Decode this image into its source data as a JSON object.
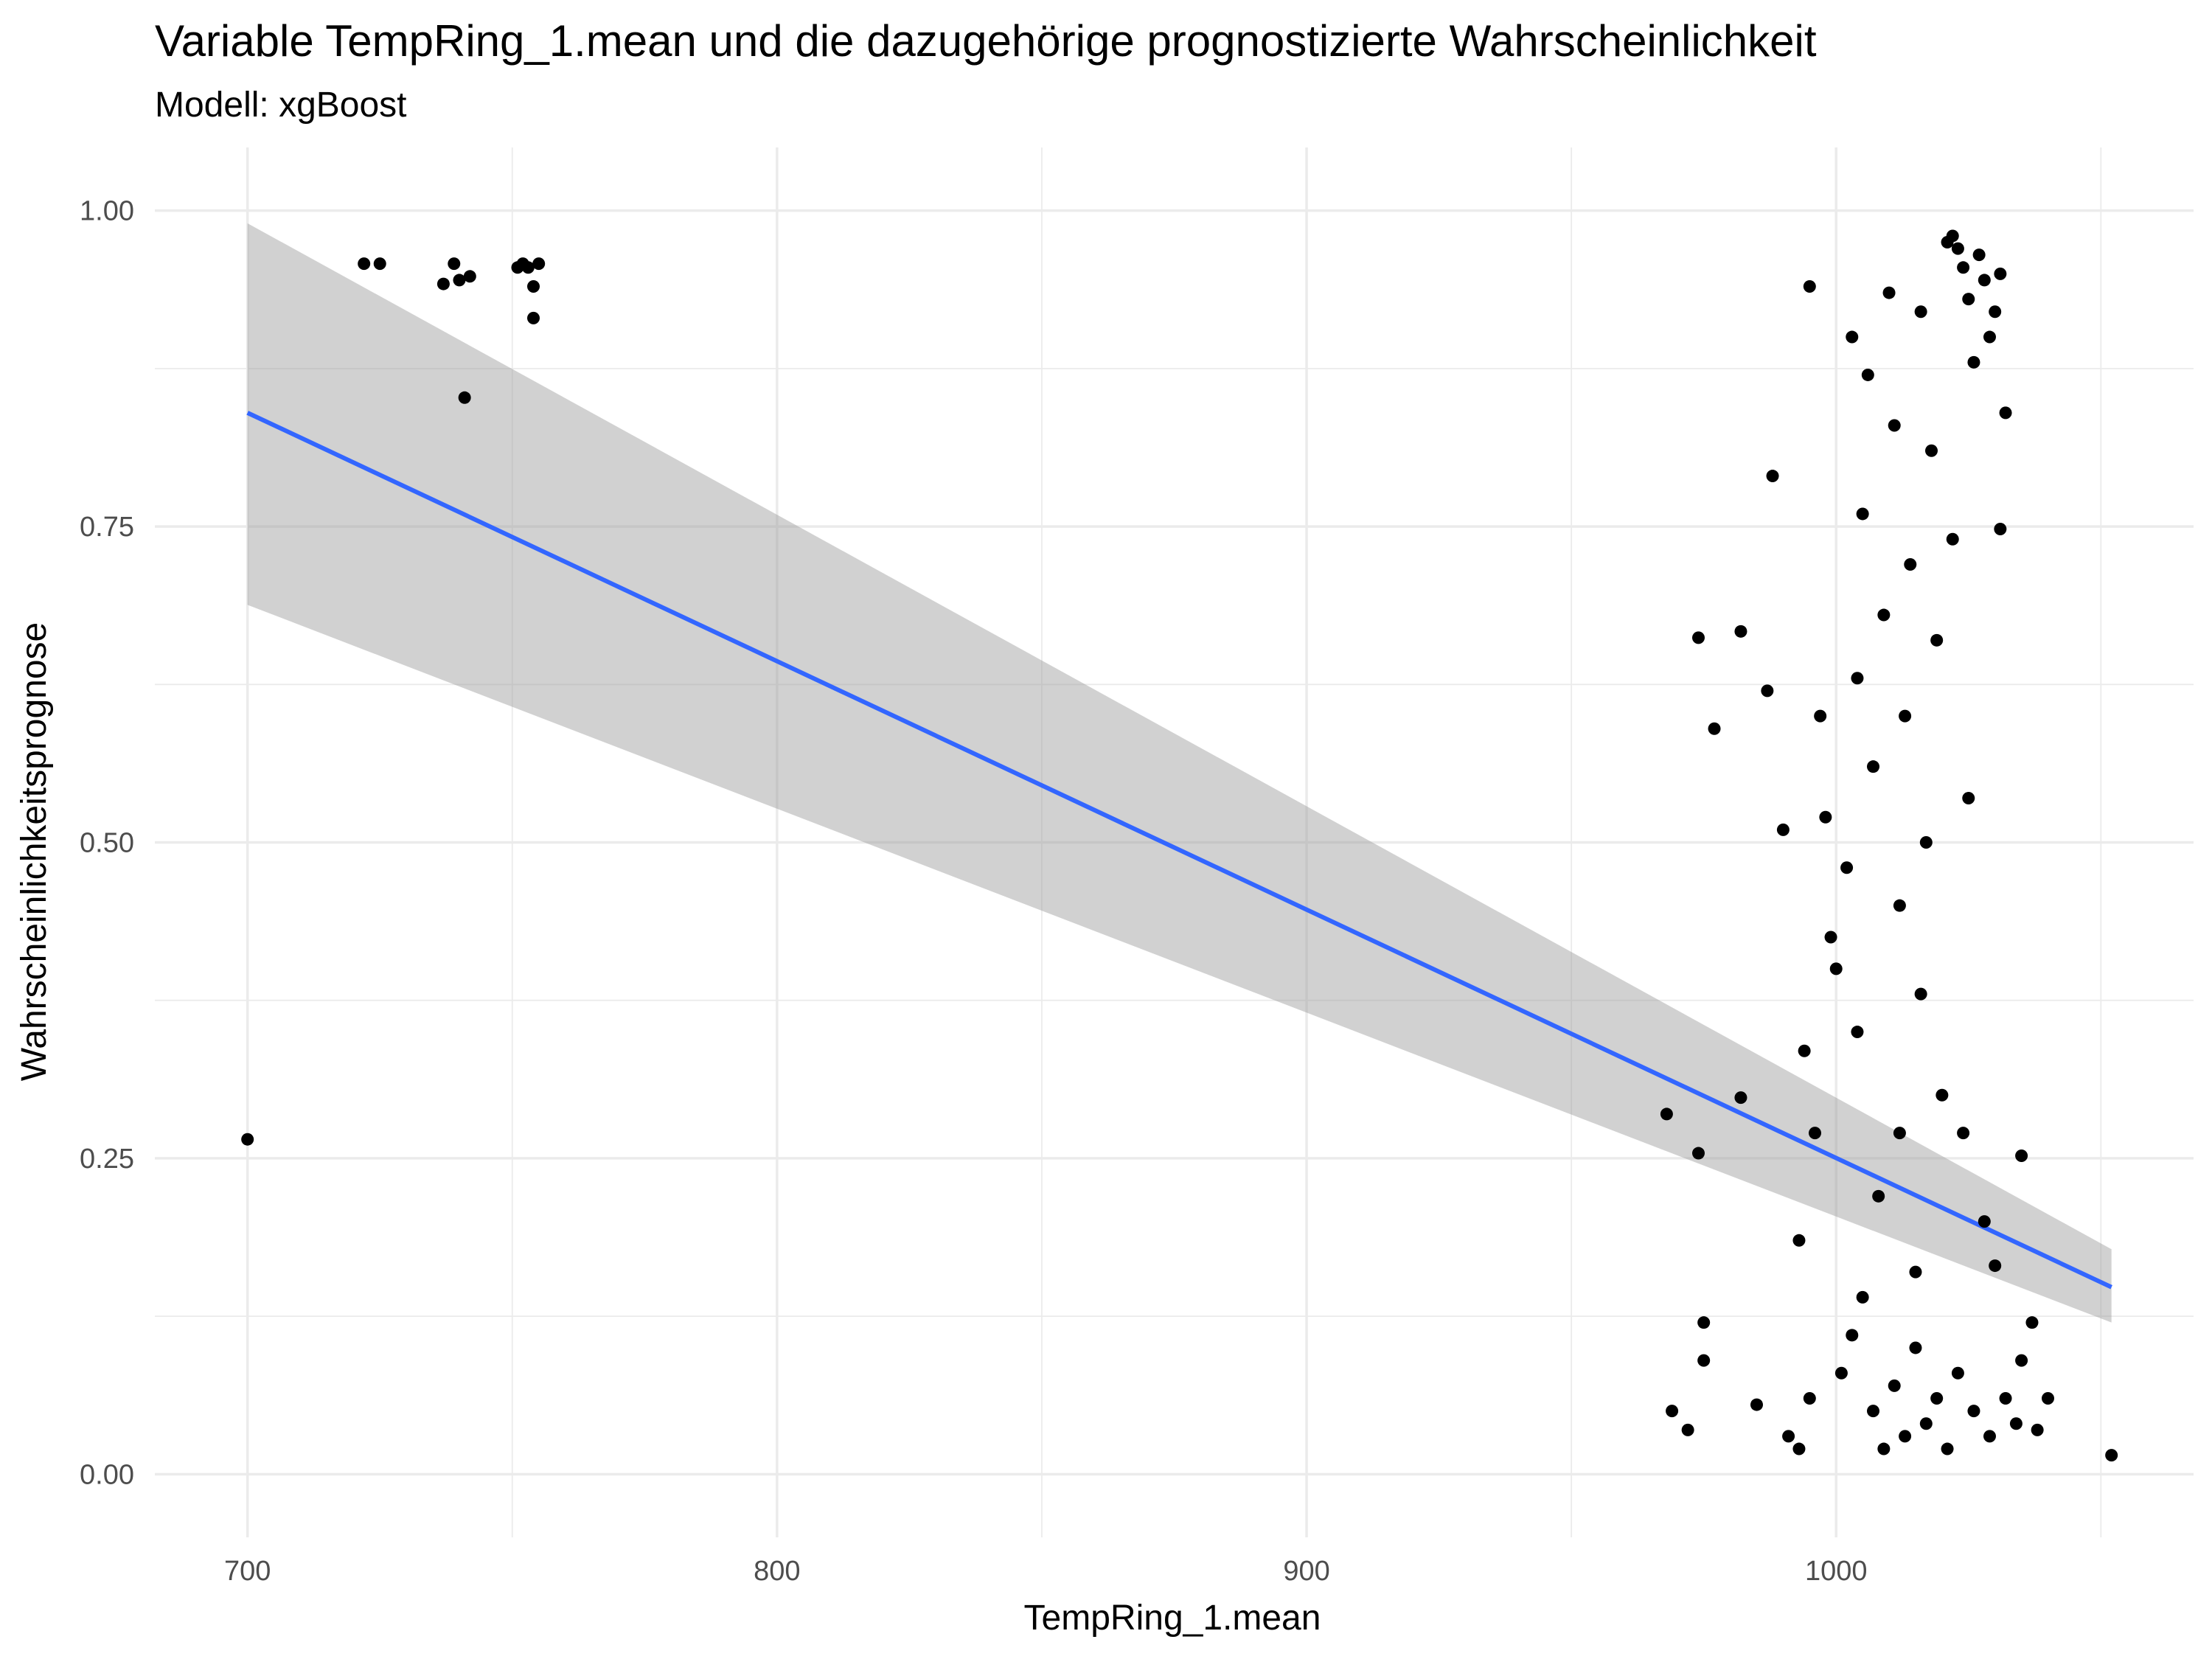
{
  "chart_data": {
    "type": "scatter",
    "title": "Variable TempRing_1.mean und die dazugehörige prognostizierte Wahrscheinlichkeit",
    "subtitle": "Modell: xgBoost",
    "xlabel": "TempRing_1.mean",
    "ylabel": "Wahrscheinlichkeitsprognose",
    "xlim": [
      682.5,
      1067.5
    ],
    "ylim": [
      -0.05,
      1.05
    ],
    "x_ticks": [
      700,
      800,
      900,
      1000
    ],
    "x_tick_labels": [
      "700",
      "800",
      "900",
      "1000"
    ],
    "y_ticks": [
      0,
      0.25,
      0.5,
      0.75,
      1.0
    ],
    "y_tick_labels": [
      "0.00",
      "0.25",
      "0.50",
      "0.75",
      "1.00"
    ],
    "grid": true,
    "theme": "minimal",
    "points": [
      [
        700,
        0.265
      ],
      [
        722,
        0.958
      ],
      [
        725,
        0.958
      ],
      [
        737,
        0.942
      ],
      [
        739,
        0.958
      ],
      [
        740,
        0.945
      ],
      [
        742,
        0.948
      ],
      [
        741,
        0.852
      ],
      [
        751,
        0.955
      ],
      [
        752,
        0.958
      ],
      [
        753,
        0.955
      ],
      [
        755,
        0.958
      ],
      [
        754,
        0.94
      ],
      [
        754,
        0.915
      ],
      [
        968,
        0.285
      ],
      [
        969,
        0.05
      ],
      [
        974,
        0.662
      ],
      [
        974,
        0.254
      ],
      [
        977,
        0.59
      ],
      [
        975,
        0.12
      ],
      [
        972,
        0.035
      ],
      [
        975,
        0.09
      ],
      [
        982,
        0.667
      ],
      [
        982,
        0.298
      ],
      [
        987,
        0.62
      ],
      [
        985,
        0.055
      ],
      [
        988,
        0.79
      ],
      [
        990,
        0.51
      ],
      [
        993,
        0.185
      ],
      [
        994,
        0.335
      ],
      [
        995,
        0.94
      ],
      [
        997,
        0.6
      ],
      [
        998,
        0.52
      ],
      [
        999,
        0.425
      ],
      [
        996,
        0.27
      ],
      [
        1000,
        0.4
      ],
      [
        1002,
        0.48
      ],
      [
        1003,
        0.9
      ],
      [
        1004,
        0.35
      ],
      [
        1004,
        0.63
      ],
      [
        1005,
        0.76
      ],
      [
        1006,
        0.87
      ],
      [
        1007,
        0.56
      ],
      [
        1008,
        0.22
      ],
      [
        1009,
        0.68
      ],
      [
        1010,
        0.935
      ],
      [
        1011,
        0.83
      ],
      [
        1012,
        0.45
      ],
      [
        1012,
        0.27
      ],
      [
        1013,
        0.6
      ],
      [
        1014,
        0.72
      ],
      [
        1015,
        0.16
      ],
      [
        1016,
        0.38
      ],
      [
        1016,
        0.92
      ],
      [
        1017,
        0.5
      ],
      [
        1018,
        0.81
      ],
      [
        1019,
        0.66
      ],
      [
        1020,
        0.3
      ],
      [
        1021,
        0.975
      ],
      [
        1022,
        0.98
      ],
      [
        1023,
        0.97
      ],
      [
        1024,
        0.955
      ],
      [
        1025,
        0.93
      ],
      [
        1026,
        0.88
      ],
      [
        1027,
        0.965
      ],
      [
        1028,
        0.945
      ],
      [
        1029,
        0.9
      ],
      [
        1030,
        0.92
      ],
      [
        1031,
        0.95
      ],
      [
        1032,
        0.84
      ],
      [
        1031,
        0.748
      ],
      [
        1022,
        0.74
      ],
      [
        1025,
        0.535
      ],
      [
        1024,
        0.27
      ],
      [
        1028,
        0.2
      ],
      [
        1030,
        0.165
      ],
      [
        1035,
        0.252
      ],
      [
        1037,
        0.12
      ],
      [
        1035,
        0.09
      ],
      [
        1038,
        0.035
      ],
      [
        1040,
        0.06
      ],
      [
        1052,
        0.015
      ],
      [
        1001,
        0.08
      ],
      [
        1003,
        0.11
      ],
      [
        1005,
        0.14
      ],
      [
        1007,
        0.05
      ],
      [
        1009,
        0.02
      ],
      [
        1011,
        0.07
      ],
      [
        1013,
        0.03
      ],
      [
        1015,
        0.1
      ],
      [
        1017,
        0.04
      ],
      [
        1019,
        0.06
      ],
      [
        1021,
        0.02
      ],
      [
        1023,
        0.08
      ],
      [
        1026,
        0.05
      ],
      [
        1029,
        0.03
      ],
      [
        1032,
        0.06
      ],
      [
        1034,
        0.04
      ],
      [
        991,
        0.03
      ],
      [
        993,
        0.02
      ],
      [
        995,
        0.06
      ]
    ],
    "trend_line": {
      "x": [
        700,
        1052
      ],
      "y": [
        0.84,
        0.148
      ]
    },
    "confidence_band": {
      "x": [
        700,
        1052
      ],
      "upper": [
        0.99,
        0.178
      ],
      "lower": [
        0.688,
        0.12
      ]
    },
    "colors": {
      "points": "#000000",
      "line": "#3366FF",
      "band": "#999999",
      "grid": "#ebebeb"
    }
  }
}
